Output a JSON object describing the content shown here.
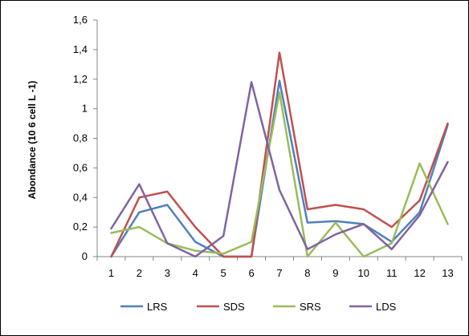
{
  "chart_data": {
    "type": "line",
    "title": "",
    "xlabel": "",
    "ylabel": "Abondance (10 6 cell L -1)",
    "x": [
      1,
      2,
      3,
      4,
      5,
      6,
      7,
      8,
      9,
      10,
      11,
      12,
      13
    ],
    "x_tick_labels": [
      "1",
      "2",
      "3",
      "4",
      "5",
      "6",
      "7",
      "8",
      "9",
      "10",
      "11",
      "12",
      "13"
    ],
    "ylim": [
      0,
      1.6
    ],
    "y_ticks": [
      0,
      0.2,
      0.4,
      0.6,
      0.8,
      1,
      1.2,
      1.4,
      1.6
    ],
    "y_tick_labels": [
      "0",
      "0,2",
      "0,4",
      "0,6",
      "0,8",
      "1",
      "1,2",
      "1,4",
      "1,6"
    ],
    "grid": false,
    "legend_position": "bottom",
    "series": [
      {
        "name": "LRS",
        "color": "#4F81BD",
        "values": [
          0.0,
          0.3,
          0.35,
          0.1,
          0.0,
          0.0,
          1.19,
          0.23,
          0.24,
          0.22,
          0.1,
          0.3,
          0.89
        ]
      },
      {
        "name": "SDS",
        "color": "#C0504D",
        "values": [
          0.0,
          0.4,
          0.44,
          0.2,
          0.0,
          0.0,
          1.38,
          0.32,
          0.35,
          0.32,
          0.2,
          0.38,
          0.9
        ]
      },
      {
        "name": "SRS",
        "color": "#9BBB59",
        "values": [
          0.16,
          0.2,
          0.09,
          0.04,
          0.02,
          0.1,
          1.11,
          0.0,
          0.23,
          0.0,
          0.09,
          0.63,
          0.22
        ]
      },
      {
        "name": "LDS",
        "color": "#8064A2",
        "values": [
          0.19,
          0.49,
          0.09,
          0.0,
          0.14,
          1.18,
          0.45,
          0.05,
          0.15,
          0.22,
          0.05,
          0.28,
          0.64
        ]
      }
    ]
  }
}
